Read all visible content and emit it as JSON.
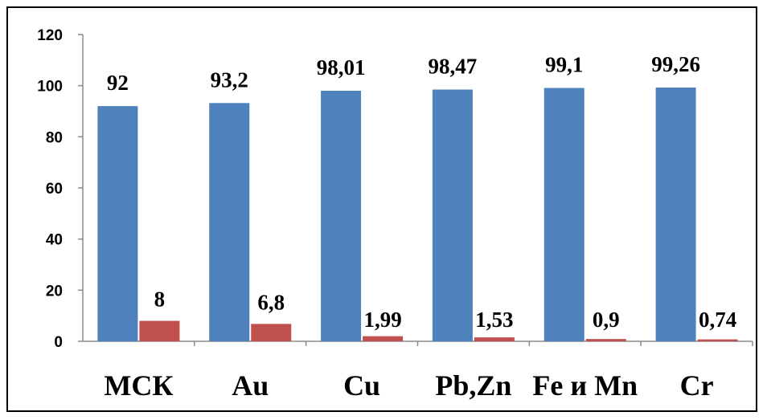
{
  "chart_data": {
    "type": "bar",
    "categories": [
      "МСК",
      "Au",
      "Cu",
      "Pb,Zn",
      "Fe и Mn",
      "Cr"
    ],
    "series": [
      {
        "values": [
          92,
          93.2,
          98.01,
          98.47,
          99.1,
          99.26
        ],
        "labels": [
          "92",
          "93,2",
          "98,01",
          "98,47",
          "99,1",
          "99,26"
        ],
        "color": "#4F81BD"
      },
      {
        "values": [
          8,
          6.8,
          1.99,
          1.53,
          0.9,
          0.74
        ],
        "labels": [
          "8",
          "6,8",
          "1,99",
          "1,53",
          "0,9",
          "0,74"
        ],
        "color": "#C0504D"
      }
    ],
    "y_ticks": [
      "0",
      "20",
      "40",
      "60",
      "80",
      "100",
      "120"
    ],
    "ylim": [
      0,
      120
    ],
    "grid": false,
    "legend": "none"
  }
}
